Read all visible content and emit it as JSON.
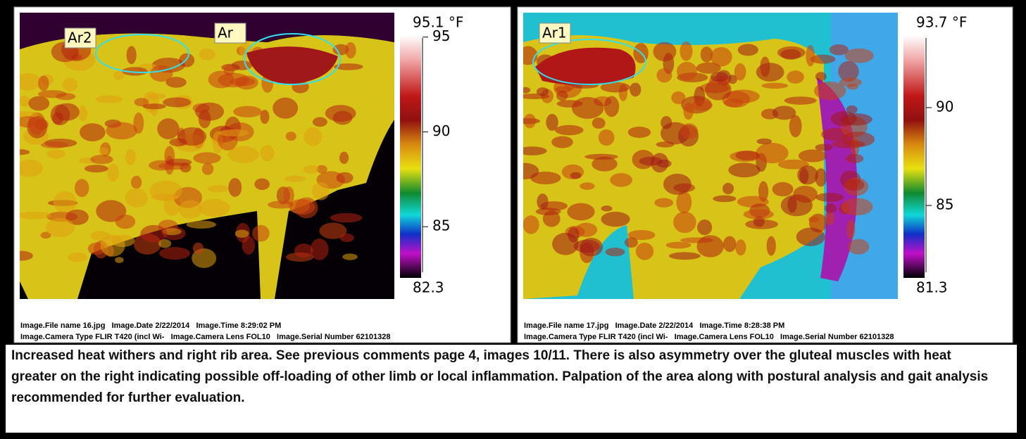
{
  "panels": [
    {
      "scale": {
        "max": {
          "value": 95.1,
          "label": "95.1 °F"
        },
        "min": 82.3,
        "ticks": [
          95,
          90,
          85
        ]
      },
      "regions": [
        {
          "label": "Ar2"
        },
        {
          "label": "Ar"
        }
      ],
      "meta": [
        "Image.File name 16.jpg   Image.Date 2/22/2014   Image.Time 8:29:02 PM",
        "Image.Camera Type FLIR T420 (incl Wi-   Image.Camera Lens FOL10   Image.Serial Number 62101328"
      ]
    },
    {
      "scale": {
        "max": {
          "value": 93.7,
          "label": "93.7 °F"
        },
        "min": 81.3,
        "ticks": [
          90,
          85
        ]
      },
      "regions": [
        {
          "label": "Ar1"
        }
      ],
      "meta": [
        "Image.File name 17.jpg   Image.Date 2/22/2014   Image.Time 8:28:38 PM",
        "Image.Camera Type FLIR T420 (incl Wi-   Image.Camera Lens FOL10   Image.Serial Number 62101328"
      ]
    }
  ],
  "comment": "Increased heat withers and right rib area. See previous comments page 4, images 10/11. There is also asymmetry over the gluteal muscles with heat greater on the right indicating possible off-loading of other limb or local inflammation. Palpation of the area along with postural analysis and gait analysis recommended for further evaluation."
}
